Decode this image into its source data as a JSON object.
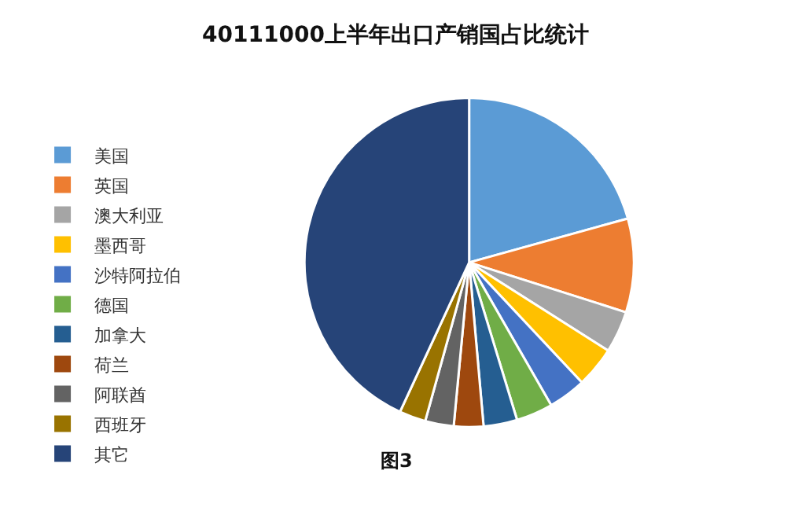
{
  "chart_data": {
    "type": "pie",
    "title": "40111000上半年出口产销国占比统计",
    "categories": [
      "美国",
      "英国",
      "澳大利亚",
      "墨西哥",
      "沙特阿拉伯",
      "德国",
      "加拿大",
      "荷兰",
      "阿联酋",
      "西班牙",
      "其它"
    ],
    "values": [
      20.7,
      9.2,
      4.1,
      4.0,
      3.7,
      3.6,
      3.3,
      2.9,
      2.8,
      2.6,
      43.1
    ],
    "colors": [
      "#5b9bd5",
      "#ed7d31",
      "#a5a5a5",
      "#ffc000",
      "#4472c4",
      "#70ad47",
      "#255e91",
      "#9e480e",
      "#636363",
      "#997300",
      "#264478"
    ],
    "legend": "left",
    "annotations": [
      "图3"
    ]
  }
}
